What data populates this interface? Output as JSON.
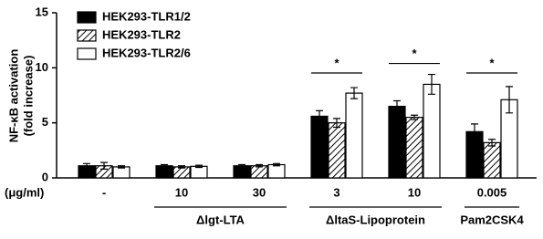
{
  "chart_data": {
    "type": "bar",
    "y_label": [
      "NF-κB activation",
      "(fold increase)"
    ],
    "x_label": "(μg/ml)",
    "categories": [
      "-",
      "10",
      "30",
      "3",
      "10",
      "0.005"
    ],
    "x_groups": [
      {
        "label": "Δlgt-LTA",
        "start": 1,
        "end": 2
      },
      {
        "label": "ΔltaS-Lipoprotein",
        "start": 3,
        "end": 4
      },
      {
        "label": "Pam2CSK4",
        "start": 5,
        "end": 5
      }
    ],
    "series": [
      {
        "name": "HEK293-TLR1/2",
        "color": "#000000",
        "values": [
          1.1,
          1.1,
          1.1,
          5.6,
          6.5,
          4.2
        ],
        "errors": [
          0.2,
          0.1,
          0.1,
          0.5,
          0.5,
          0.7
        ]
      },
      {
        "name": "HEK293-TLR2",
        "color": "#000000",
        "pattern": "hatch",
        "values": [
          1.1,
          1.0,
          1.1,
          5.0,
          5.5,
          3.2
        ],
        "errors": [
          0.3,
          0.1,
          0.1,
          0.4,
          0.2,
          0.3
        ]
      },
      {
        "name": "HEK293-TLR2/6",
        "color": "#ffffff",
        "values": [
          1.0,
          1.05,
          1.2,
          7.7,
          8.5,
          7.1
        ],
        "errors": [
          0.1,
          0.1,
          0.1,
          0.5,
          0.9,
          1.2
        ]
      }
    ],
    "significance": [
      null,
      null,
      null,
      "*",
      "*",
      "*"
    ],
    "ylim": [
      0,
      15
    ],
    "yticks": [
      0,
      5,
      10,
      15
    ],
    "legend": "top-left"
  }
}
